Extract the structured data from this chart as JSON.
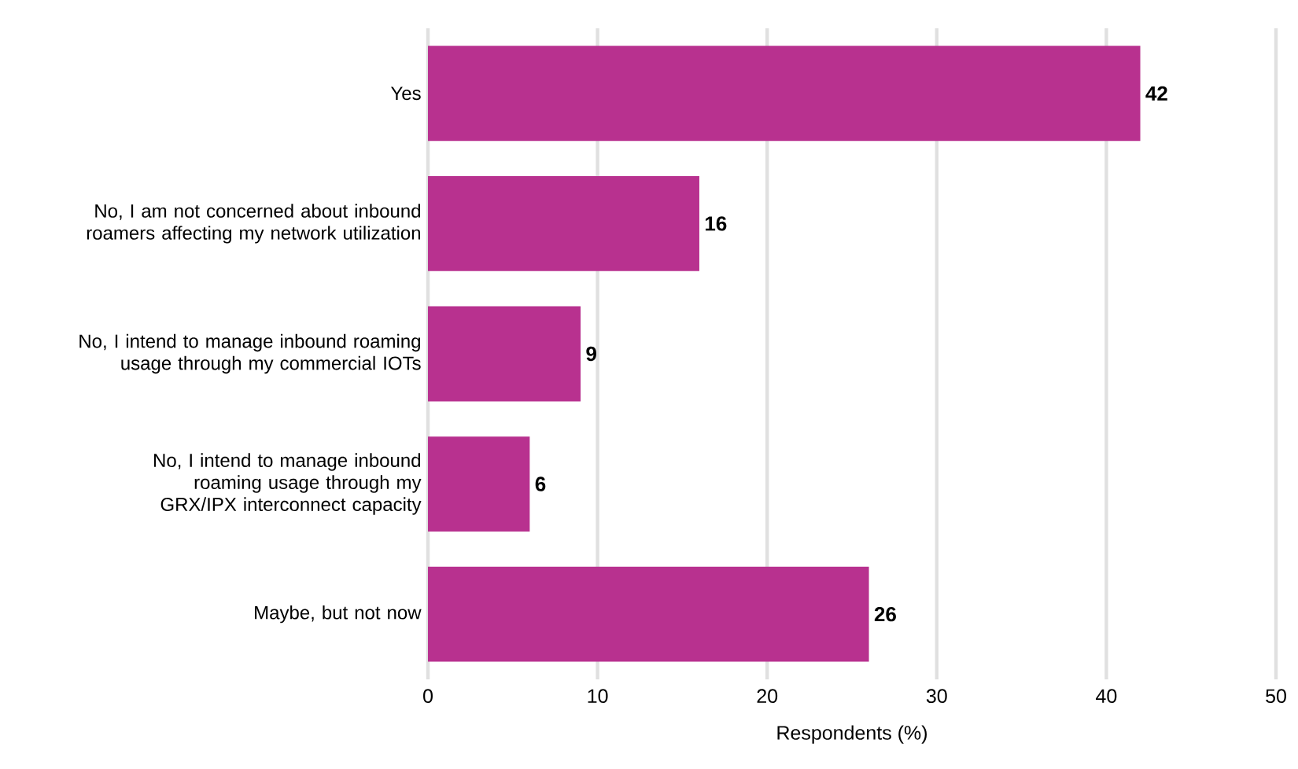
{
  "chart_data": {
    "type": "bar",
    "orientation": "horizontal",
    "categories": [
      "Yes",
      "No, I am not concerned about inbound roamers affecting my network utilization",
      "No, I intend to manage inbound roaming usage through my commercial IOTs",
      "No, I intend to manage inbound roaming usage through my GRX/IPX interconnect capacity",
      "Maybe, but not now"
    ],
    "values": [
      42,
      16,
      9,
      6,
      26
    ],
    "color": "#b8318f",
    "xlabel": "Respondents (%)",
    "xlim": [
      0,
      50
    ],
    "xticks": [
      0,
      10,
      20,
      30,
      40,
      50
    ],
    "grid": "x",
    "data_labels": true
  }
}
